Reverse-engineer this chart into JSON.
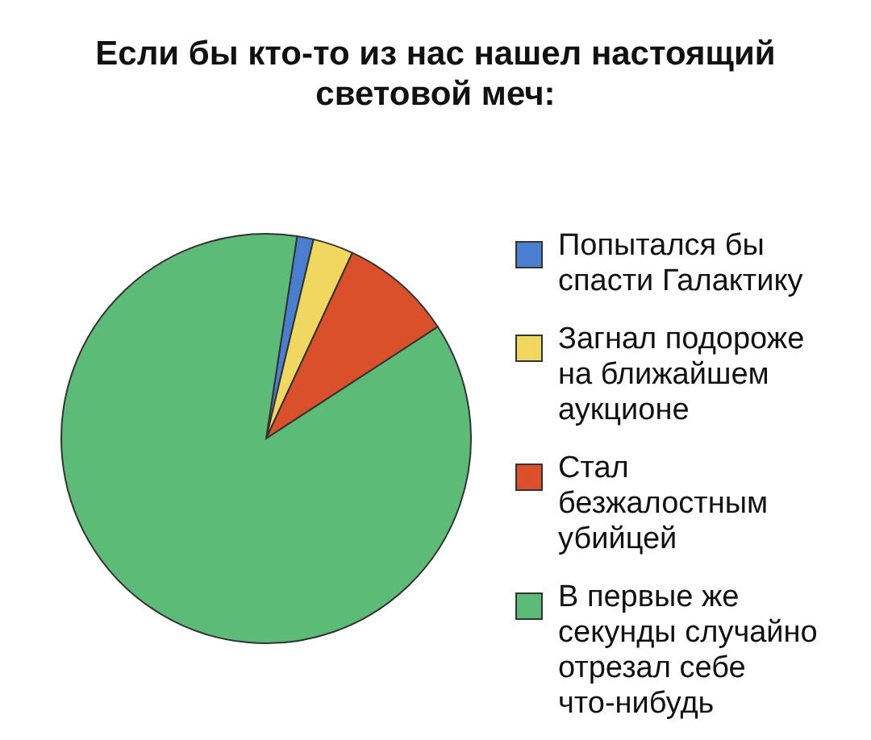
{
  "chart_data": {
    "type": "pie",
    "title": "Если бы кто-то из нас нашел настоящий световой меч:",
    "categories": [
      "Попытался бы спасти Галактику",
      "Загнал подороже на ближайшем аукционе",
      "Стал безжалостным убийцей",
      "В первые же секунды случайно отрезал себе что-нибудь"
    ],
    "values": [
      1.3,
      3.2,
      8.9,
      86.6
    ],
    "colors": [
      "#4a7fd0",
      "#f0d860",
      "#d9502a",
      "#5dbb78"
    ],
    "legend": "right"
  }
}
